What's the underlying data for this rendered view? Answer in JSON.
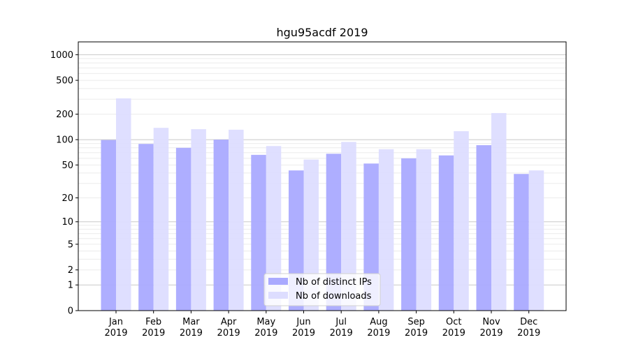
{
  "chart_data": {
    "type": "bar",
    "title": "hgu95acdf 2019",
    "xlabel": "",
    "ylabel": "",
    "yscale": "log10(1+y)",
    "ylim": [
      0,
      1300
    ],
    "yticks": [
      0,
      1,
      2,
      5,
      10,
      20,
      50,
      100,
      200,
      500,
      1000
    ],
    "categories": [
      "Jan\n2019",
      "Feb\n2019",
      "Mar\n2019",
      "Apr\n2019",
      "May\n2019",
      "Jun\n2019",
      "Jul\n2019",
      "Aug\n2019",
      "Sep\n2019",
      "Oct\n2019",
      "Nov\n2019",
      "Dec\n2019"
    ],
    "series": [
      {
        "name": "Nb of distinct IPs",
        "color": "#aaaaff",
        "values": [
          99,
          89,
          80,
          100,
          66,
          43,
          68,
          52,
          60,
          65,
          86,
          39
        ]
      },
      {
        "name": "Nb of downloads",
        "color": "#ddddff",
        "values": [
          307,
          138,
          133,
          131,
          84,
          58,
          94,
          77,
          77,
          126,
          206,
          43
        ]
      }
    ],
    "legend_position": "lower-center",
    "grid": true
  }
}
